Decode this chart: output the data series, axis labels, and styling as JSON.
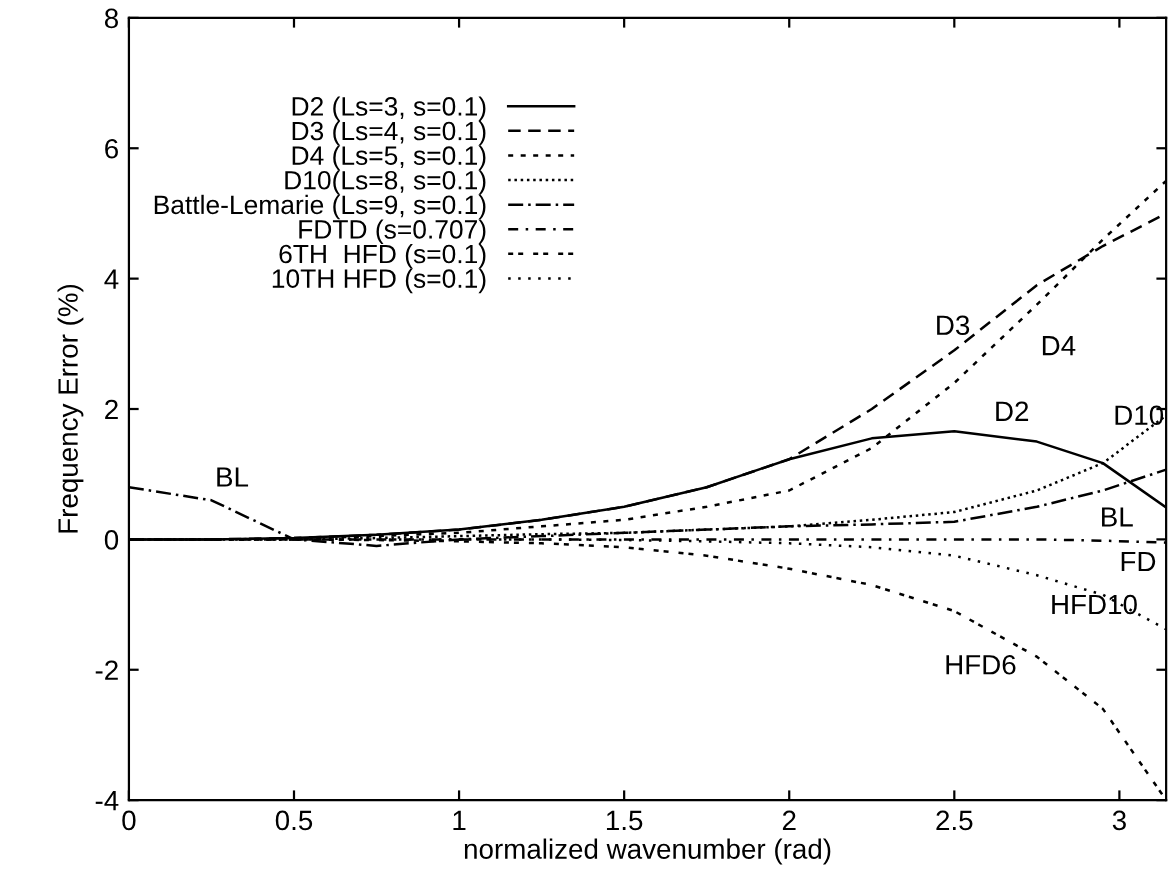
{
  "chart_data": {
    "type": "line",
    "xlabel": "normalized wavenumber (rad)",
    "ylabel": "Frequency Error (%)",
    "xlim": [
      0,
      3.1416
    ],
    "ylim": [
      -4,
      8
    ],
    "xticks": [
      0,
      0.5,
      1,
      1.5,
      2,
      2.5,
      3
    ],
    "yticks": [
      -4,
      -2,
      0,
      2,
      4,
      6,
      8
    ],
    "grid": false,
    "legend": "top left",
    "marker": "none",
    "x": [
      0,
      0.25,
      0.5,
      0.75,
      1,
      1.25,
      1.5,
      1.75,
      2,
      2.25,
      2.5,
      2.75,
      2.95,
      3.1416
    ],
    "series": [
      {
        "name": "D2 (Ls=3, s=0.1)",
        "color": "#000000",
        "line_style": "solid",
        "values": [
          0,
          0,
          0.02,
          0.07,
          0.15,
          0.3,
          0.5,
          0.8,
          1.23,
          1.55,
          1.66,
          1.5,
          1.17,
          0.49
        ]
      },
      {
        "name": "D3 (Ls=4, s=0.1)",
        "color": "#000000",
        "line_style": "dashed",
        "values": [
          0,
          0,
          0.02,
          0.07,
          0.15,
          0.3,
          0.5,
          0.8,
          1.23,
          2.0,
          2.9,
          3.9,
          4.5,
          5.0
        ]
      },
      {
        "name": "D4 (Ls=5, s=0.1)",
        "color": "#000000",
        "line_style": "dotted",
        "values": [
          0,
          0,
          0.01,
          0.05,
          0.1,
          0.2,
          0.3,
          0.5,
          0.75,
          1.4,
          2.4,
          3.6,
          4.6,
          5.5
        ]
      },
      {
        "name": "D10(Ls=8, s=0.1)",
        "color": "#000000",
        "line_style": "dotted",
        "values": [
          0,
          0,
          0,
          0.02,
          0.05,
          0.08,
          0.1,
          0.15,
          0.2,
          0.3,
          0.42,
          0.75,
          1.17,
          1.9
        ]
      },
      {
        "name": "Battle-Lemarie (Ls=9, s=0.1)",
        "color": "#000000",
        "line_style": "dashed",
        "values": [
          0.8,
          0.6,
          0,
          -0.1,
          0,
          0.05,
          0.1,
          0.15,
          0.2,
          0.23,
          0.27,
          0.5,
          0.75,
          1.07
        ]
      },
      {
        "name": "FDTD (s=0.707)",
        "color": "#000000",
        "line_style": "dashed",
        "values": [
          0,
          0,
          0,
          0,
          0,
          0,
          0,
          0,
          0,
          0,
          0,
          0,
          -0.02,
          -0.05
        ]
      },
      {
        "name": "6TH  HFD (s=0.1)",
        "color": "#000000",
        "line_style": "dotted",
        "values": [
          0,
          0,
          0,
          -0.01,
          -0.03,
          -0.06,
          -0.12,
          -0.25,
          -0.45,
          -0.7,
          -1.1,
          -1.8,
          -2.6,
          -4.0
        ]
      },
      {
        "name": "10TH HFD (s=0.1)",
        "color": "#000000",
        "line_style": "dotted",
        "values": [
          0,
          0,
          0,
          0,
          0,
          0,
          -0.01,
          -0.03,
          -0.06,
          -0.12,
          -0.25,
          -0.55,
          -0.85,
          -1.38
        ]
      }
    ],
    "annotations": [
      "BL",
      "D3",
      "D4",
      "D2",
      "D10",
      "BL",
      "FD",
      "HFD10",
      "HFD6"
    ]
  }
}
